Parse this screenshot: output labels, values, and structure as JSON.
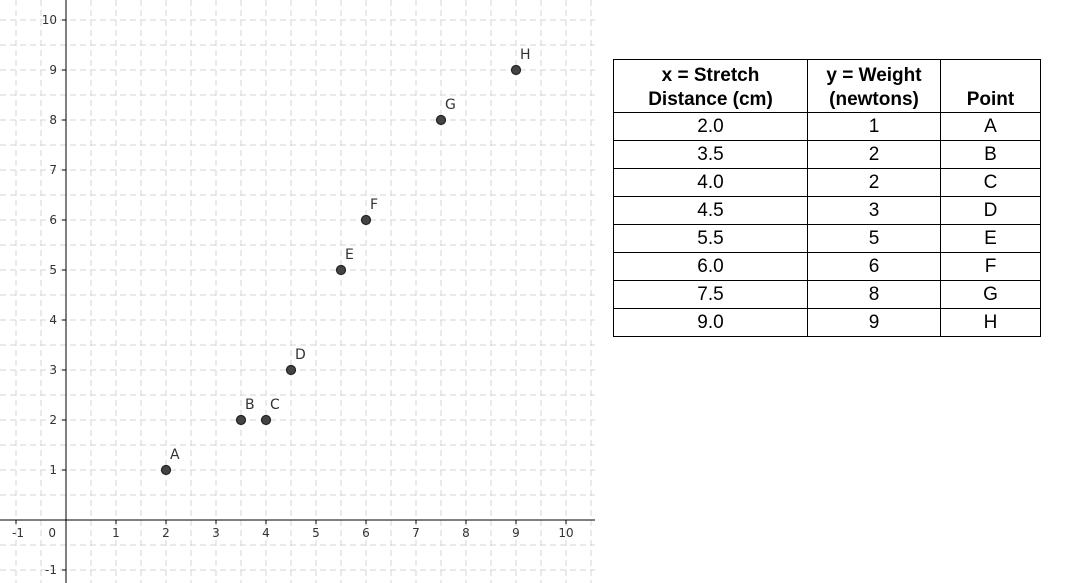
{
  "chart_data": {
    "type": "scatter",
    "xlim": [
      -1,
      10
    ],
    "ylim": [
      -1,
      10
    ],
    "x_ticks": [
      -1,
      0,
      1,
      2,
      3,
      4,
      5,
      6,
      7,
      8,
      9,
      10
    ],
    "y_ticks": [
      -1,
      1,
      2,
      3,
      4,
      5,
      6,
      7,
      8,
      9,
      10
    ],
    "grid": true,
    "points": [
      {
        "label": "A",
        "x": 2.0,
        "y": 1
      },
      {
        "label": "B",
        "x": 3.5,
        "y": 2
      },
      {
        "label": "C",
        "x": 4.0,
        "y": 2
      },
      {
        "label": "D",
        "x": 4.5,
        "y": 3
      },
      {
        "label": "E",
        "x": 5.5,
        "y": 5
      },
      {
        "label": "F",
        "x": 6.0,
        "y": 6
      },
      {
        "label": "G",
        "x": 7.5,
        "y": 8
      },
      {
        "label": "H",
        "x": 9.0,
        "y": 9
      }
    ]
  },
  "table": {
    "headers": {
      "col1_line1": "x = Stretch",
      "col1_line2": "Distance (cm)",
      "col2_line1": "y = Weight",
      "col2_line2": "(newtons)",
      "col3": "Point"
    },
    "rows": [
      {
        "x": "2.0",
        "y": "1",
        "point": "A"
      },
      {
        "x": "3.5",
        "y": "2",
        "point": "B"
      },
      {
        "x": "4.0",
        "y": "2",
        "point": "C"
      },
      {
        "x": "4.5",
        "y": "3",
        "point": "D"
      },
      {
        "x": "5.5",
        "y": "5",
        "point": "E"
      },
      {
        "x": "6.0",
        "y": "6",
        "point": "F"
      },
      {
        "x": "7.5",
        "y": "8",
        "point": "G"
      },
      {
        "x": "9.0",
        "y": "9",
        "point": "H"
      }
    ]
  }
}
